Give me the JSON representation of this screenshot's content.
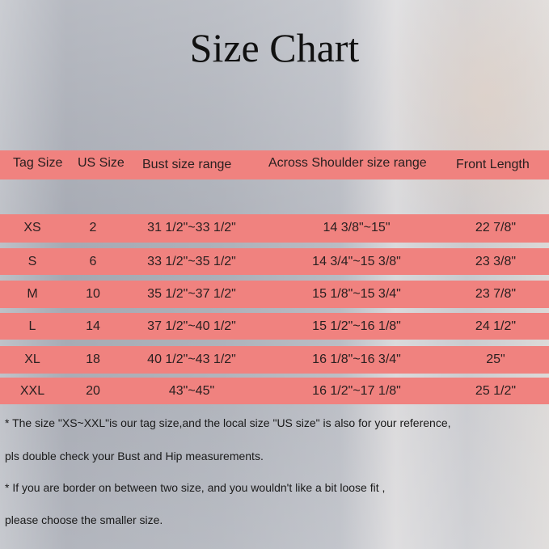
{
  "title": "Size Chart",
  "colors": {
    "band": "#f0827f",
    "text": "#2a2020"
  },
  "table": {
    "headers": [
      "Tag Size",
      "US Size",
      "Bust size range",
      "Across Shoulder size range",
      "Front Length"
    ],
    "rows": [
      [
        "XS",
        "2",
        "31 1/2\"~33 1/2\"",
        "14 3/8\"~15\"",
        "22 7/8\""
      ],
      [
        "S",
        "6",
        "33 1/2\"~35 1/2\"",
        "14 3/4\"~15 3/8\"",
        "23 3/8\""
      ],
      [
        "M",
        "10",
        "35 1/2\"~37 1/2\"",
        "15 1/8\"~15 3/4\"",
        "23 7/8\""
      ],
      [
        "L",
        "14",
        "37 1/2\"~40 1/2\"",
        "15 1/2\"~16 1/8\"",
        "24 1/2\""
      ],
      [
        "XL",
        "18",
        "40 1/2\"~43 1/2\"",
        "16 1/8\"~16 3/4\"",
        "25\""
      ],
      [
        "XXL",
        "20",
        "43\"~45\"",
        "16 1/2\"~17 1/8\"",
        "25 1/2\""
      ]
    ]
  },
  "notes": [
    "* The size \"XS~XXL\"is our tag size,and the local size \"US size\" is also for your reference,",
    "pls double check your Bust and Hip measurements.",
    "* If you are border on between two size, and you wouldn't like a bit loose fit ,",
    "please choose the smaller size."
  ]
}
